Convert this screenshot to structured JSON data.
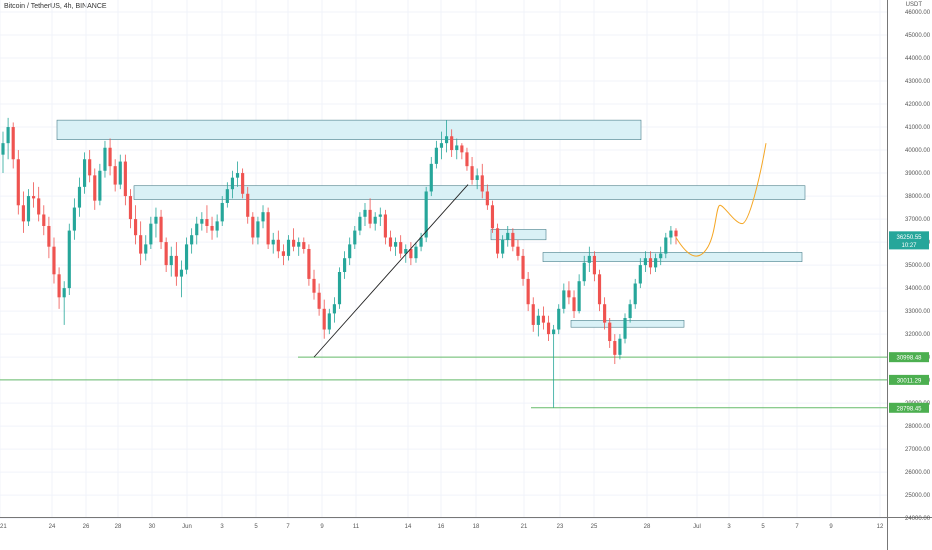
{
  "header": {
    "title": "Bitcoin / TetherUS, 4h, BINANCE",
    "unit": "USDT"
  },
  "chart_data": {
    "type": "candlestick",
    "title": "Bitcoin / TetherUS, 4h, BINANCE",
    "ylabel": "USDT",
    "ylim": [
      23400,
      46200
    ],
    "y_ticks": [
      "46000.00",
      "45000.00",
      "44000.00",
      "43000.00",
      "42000.00",
      "41000.00",
      "40000.00",
      "39000.00",
      "38000.00",
      "37000.00",
      "36000.00",
      "35000.00",
      "34000.00",
      "33000.00",
      "32000.00",
      "31000.00",
      "30000.00",
      "29000.00",
      "28000.00",
      "27000.00",
      "26000.00",
      "25000.00",
      "24000.00"
    ],
    "x_ticks": [
      "21",
      "24",
      "26",
      "28",
      "30",
      "Jun",
      "3",
      "5",
      "7",
      "9",
      "11",
      "14",
      "16",
      "18",
      "21",
      "23",
      "25",
      "28",
      "Jul",
      "3",
      "5",
      "7",
      "9",
      "12"
    ],
    "price_tags": [
      {
        "label": "36250.55",
        "value": 36250.55,
        "color": "#26a69a"
      },
      {
        "label": "10:27",
        "value": 35900,
        "color": "#26a69a"
      },
      {
        "label": "30998.48",
        "value": 30998.48,
        "color": "#4caf50"
      },
      {
        "label": "30011.29",
        "value": 30011.29,
        "color": "#4caf50"
      },
      {
        "label": "28798.45",
        "value": 28798.45,
        "color": "#4caf50"
      }
    ],
    "support_lines": [
      30998.48,
      30011.29,
      28798.45
    ],
    "zones": [
      {
        "from": 40450,
        "to": 41300
      },
      {
        "from": 37850,
        "to": 38450
      },
      {
        "from": 36100,
        "to": 36550
      },
      {
        "from": 35150,
        "to": 35550
      },
      {
        "from": 32300,
        "to": 32600
      }
    ],
    "trendline": [
      [
        31000,
        38500
      ]
    ],
    "projection": [
      36200,
      35200,
      37600,
      36800,
      40300
    ],
    "colors": {
      "up": "#26a69a",
      "down": "#ef5350",
      "zone_fill": "#d9f1f6",
      "zone_stroke": "#4a7f8a",
      "support": "#66bb6a",
      "projection": "#f5a623"
    }
  }
}
